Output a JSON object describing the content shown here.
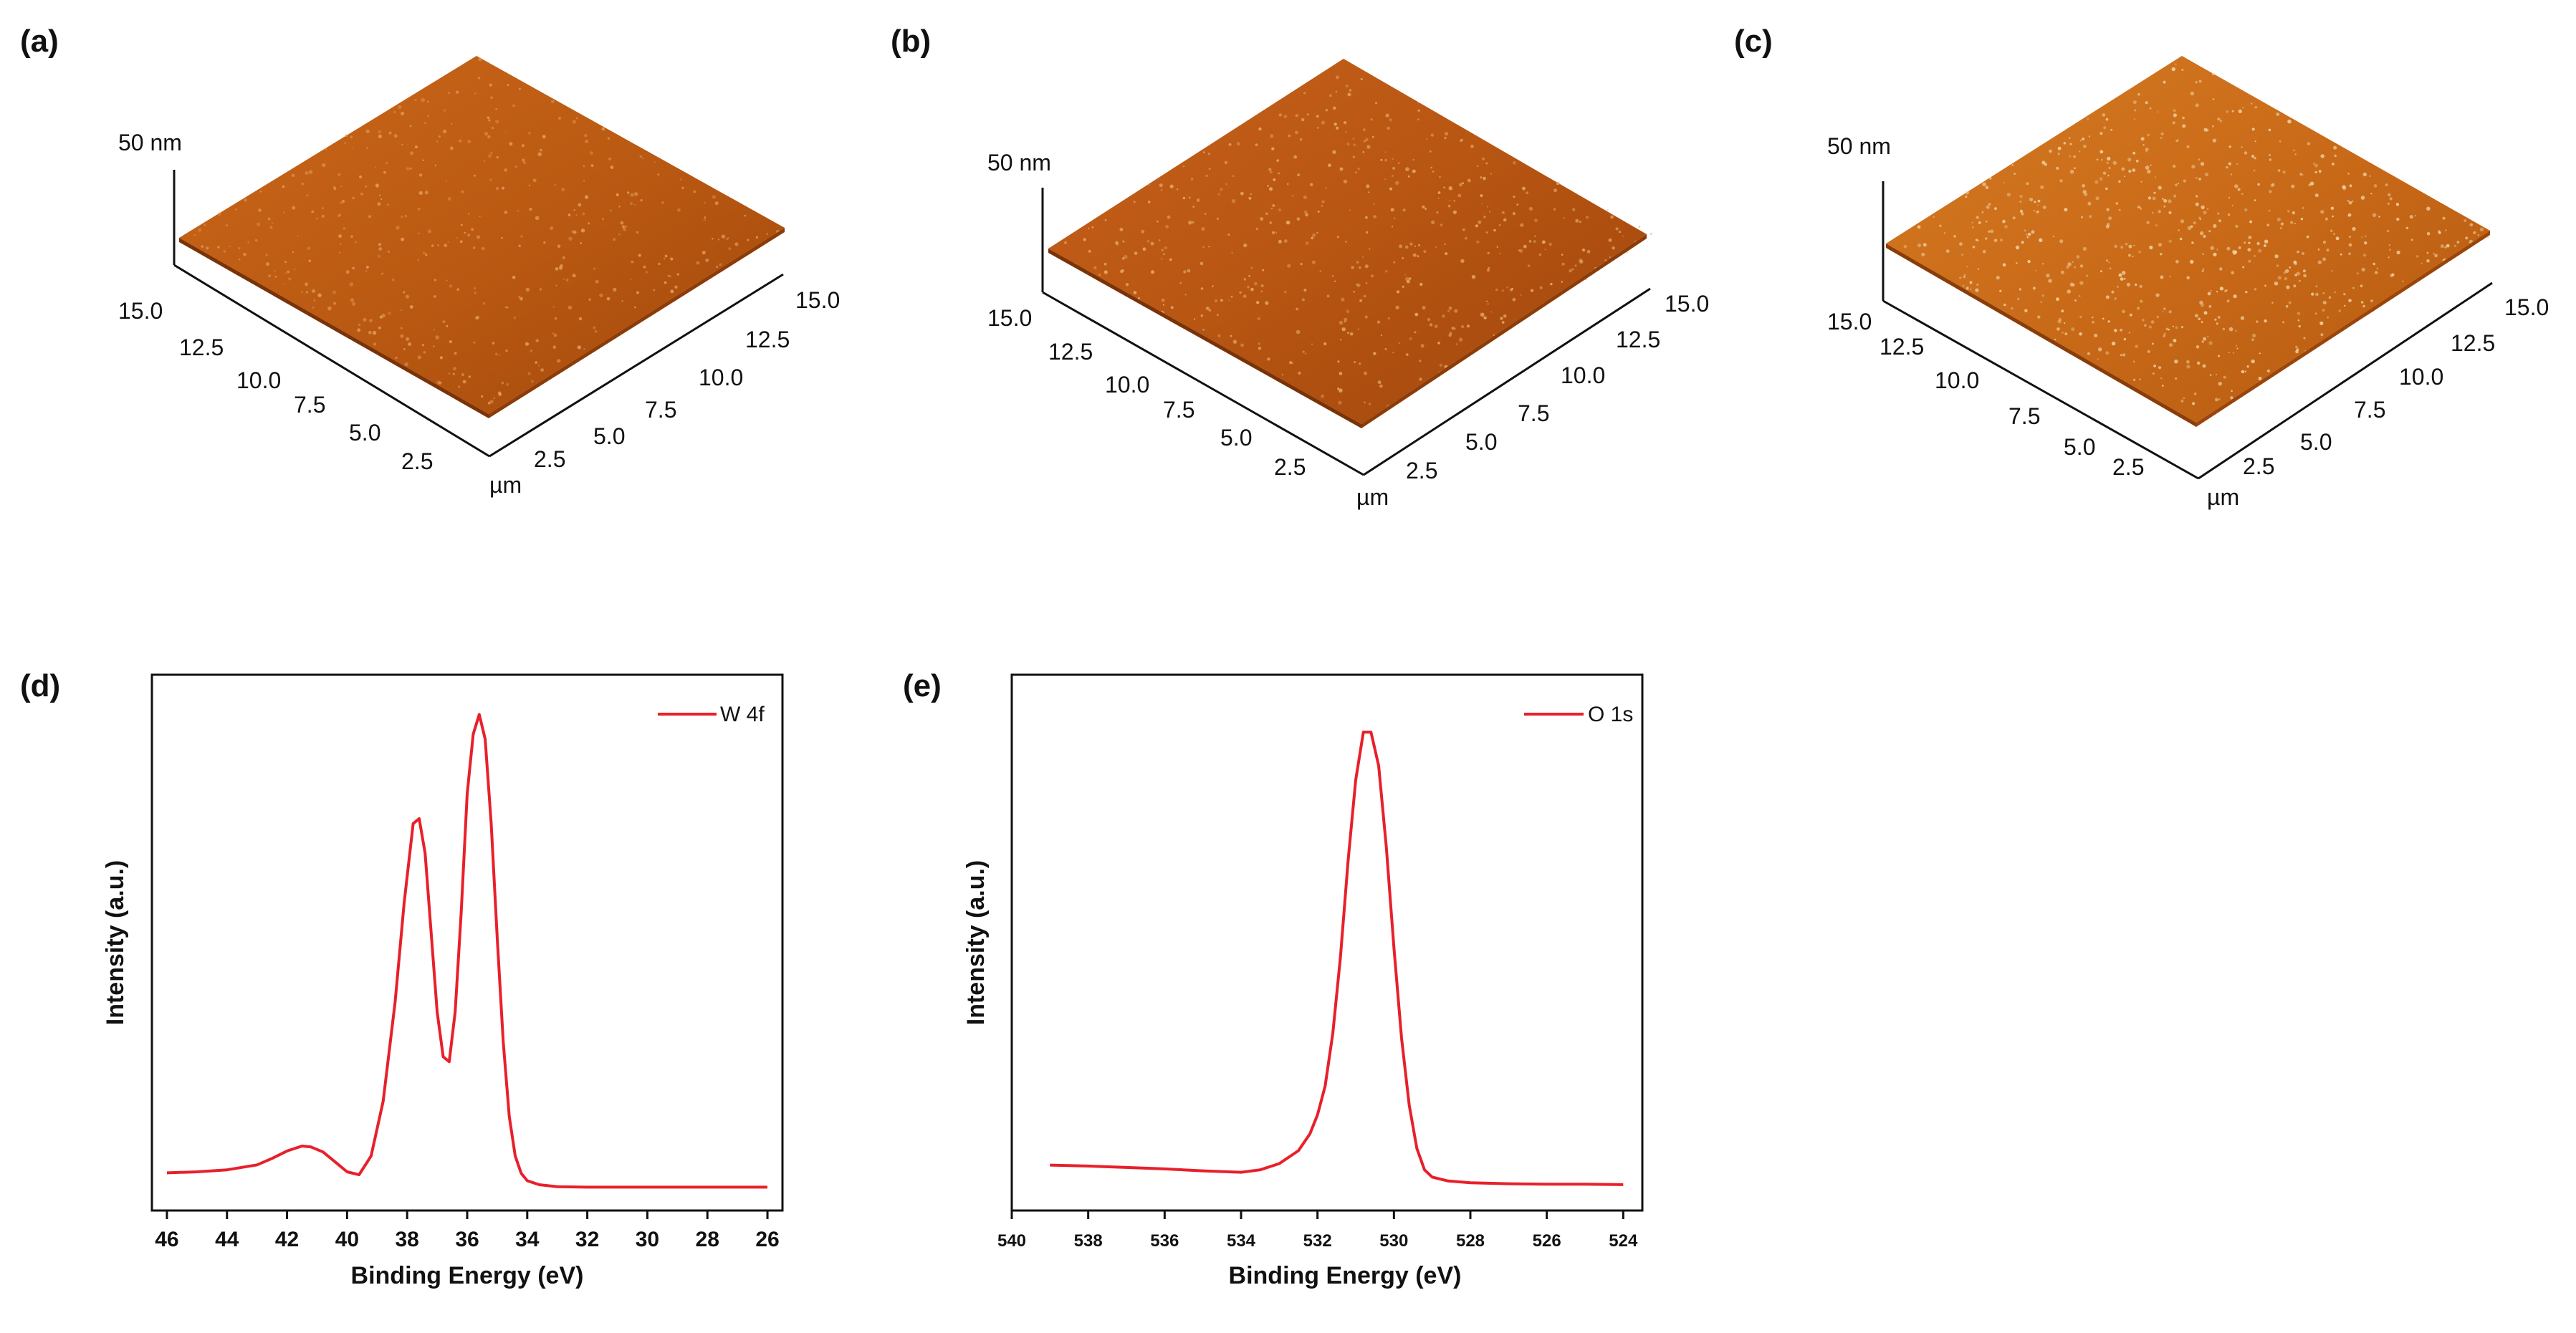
{
  "panels": {
    "a": "(a)",
    "b": "(b)",
    "c": "(c)",
    "d": "(d)",
    "e": "(e)"
  },
  "afm": {
    "z_label": "50 nm",
    "unit": "µm",
    "ticks": [
      "2.5",
      "5.0",
      "7.5",
      "10.0",
      "12.5",
      "15.0"
    ],
    "colors": {
      "surface_light": "#d2771f",
      "surface_dark": "#a64b0c",
      "surface_mid": "#bf6216"
    }
  },
  "chart_data": [
    {
      "type": "line",
      "panel": "(d)",
      "xlabel": "Binding Energy (eV)",
      "ylabel": "Intensity (a.u.)",
      "xlim": [
        46.5,
        25.5
      ],
      "x_reversed": true,
      "ylim": [
        0,
        1.08
      ],
      "xticks": [
        "46",
        "44",
        "42",
        "40",
        "38",
        "36",
        "34",
        "32",
        "30",
        "28",
        "26"
      ],
      "series": [
        {
          "name": "W 4f",
          "color": "#e8202a",
          "x": [
            46,
            45,
            44,
            43,
            42.5,
            42,
            41.5,
            41.2,
            40.8,
            40.4,
            40,
            39.6,
            39.2,
            38.8,
            38.4,
            38.1,
            37.8,
            37.6,
            37.4,
            37.2,
            37,
            36.8,
            36.6,
            36.4,
            36.2,
            36,
            35.8,
            35.6,
            35.4,
            35.2,
            35,
            34.8,
            34.6,
            34.4,
            34.2,
            34,
            33.6,
            33,
            32,
            30,
            28,
            26
          ],
          "values": [
            0.076,
            0.078,
            0.082,
            0.092,
            0.105,
            0.12,
            0.13,
            0.128,
            0.118,
            0.098,
            0.078,
            0.072,
            0.11,
            0.22,
            0.42,
            0.62,
            0.78,
            0.79,
            0.72,
            0.56,
            0.4,
            0.31,
            0.3,
            0.4,
            0.6,
            0.84,
            0.96,
            1.0,
            0.95,
            0.78,
            0.55,
            0.34,
            0.19,
            0.11,
            0.075,
            0.06,
            0.052,
            0.048,
            0.047,
            0.047,
            0.047,
            0.047
          ]
        }
      ]
    },
    {
      "type": "line",
      "panel": "(e)",
      "xlabel": "Binding Energy (eV)",
      "ylabel": "Intensity (a.u.)",
      "xlim": [
        540,
        523.5
      ],
      "x_reversed": true,
      "ylim": [
        0,
        1.12
      ],
      "xticks": [
        "540",
        "538",
        "536",
        "534",
        "532",
        "530",
        "528",
        "526",
        "524"
      ],
      "series": [
        {
          "name": "O 1s",
          "color": "#e8202a",
          "x": [
            539,
            538,
            537,
            536,
            535,
            534,
            533.5,
            533,
            532.5,
            532.2,
            532,
            531.8,
            531.6,
            531.4,
            531.2,
            531,
            530.8,
            530.6,
            530.4,
            530.2,
            530,
            529.8,
            529.6,
            529.4,
            529.2,
            529,
            528.6,
            528,
            527,
            526,
            525,
            524
          ],
          "values": [
            0.095,
            0.093,
            0.09,
            0.087,
            0.083,
            0.08,
            0.085,
            0.098,
            0.125,
            0.16,
            0.2,
            0.26,
            0.37,
            0.53,
            0.73,
            0.9,
            1.0,
            1.0,
            0.93,
            0.76,
            0.55,
            0.36,
            0.22,
            0.13,
            0.085,
            0.07,
            0.062,
            0.058,
            0.056,
            0.055,
            0.055,
            0.054
          ]
        }
      ]
    }
  ]
}
